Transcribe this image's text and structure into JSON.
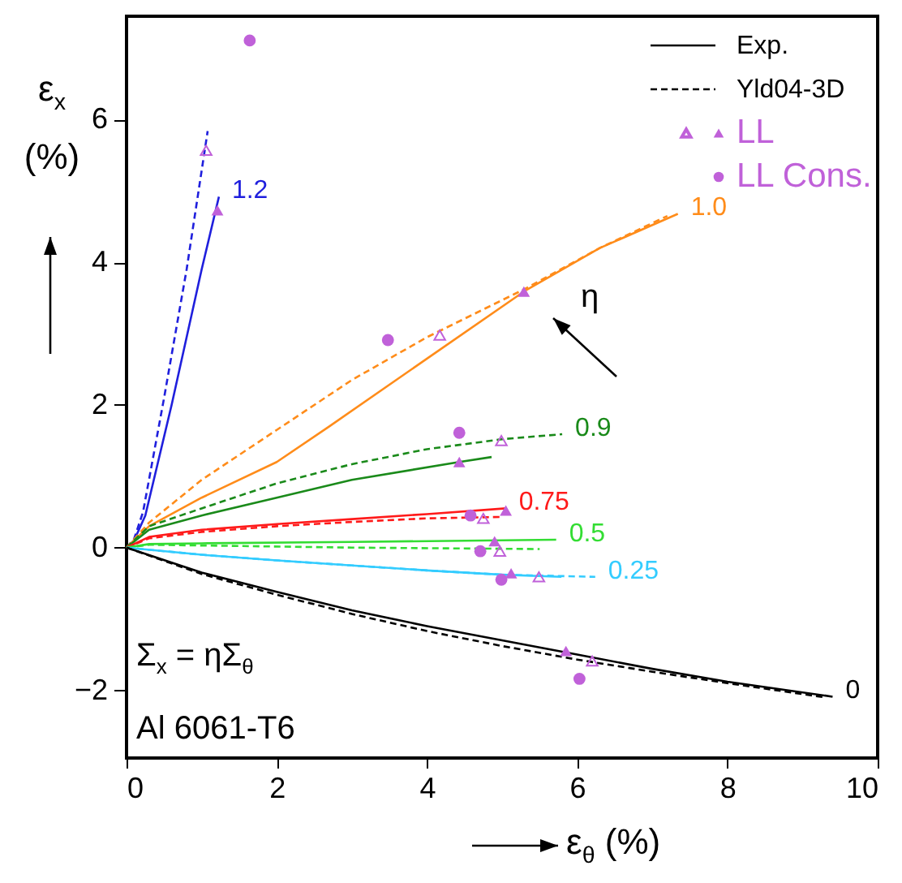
{
  "chart_data": {
    "type": "line",
    "xlabel": "ε$_{θ}$ (%)",
    "ylabel": "ε$_{x}$ (%)",
    "xlim": [
      0,
      10
    ],
    "ylim": [
      -2.95,
      7.45
    ],
    "xticks": [
      0,
      2,
      4,
      6,
      8,
      10
    ],
    "yticks": [
      -2,
      0,
      2,
      4,
      6
    ],
    "legend": "top right",
    "annotations": [
      "Σ$_{x}$ = ηΣ$_{θ}$",
      "Al 6061-T6",
      "η"
    ],
    "series": [
      {
        "name": "Exp.",
        "color": "#000000",
        "line_style": "solid"
      },
      {
        "name": "Yld04-3D",
        "color": "#000000",
        "line_style": "dashed"
      },
      {
        "name": "1.2",
        "type": "line",
        "color": "#1f1fdd",
        "line_style": "solid",
        "x": [
          0,
          0.1,
          0.25,
          0.6,
          1.0,
          1.23
        ],
        "values": [
          0,
          0.1,
          0.45,
          2.0,
          3.9,
          4.92
        ]
      },
      {
        "type": "line",
        "color": "#1f1fdd",
        "line_style": "dashed",
        "x": [
          0,
          0.1,
          0.22,
          0.5,
          0.8,
          1.08
        ],
        "values": [
          0,
          0.12,
          0.5,
          2.1,
          3.9,
          5.84
        ]
      },
      {
        "name": "1.0",
        "type": "line",
        "color": "#ff8c1a",
        "line_style": "solid",
        "x": [
          0,
          0.3,
          1,
          2,
          2.7,
          4,
          5.29,
          6.3,
          7.34
        ],
        "values": [
          0,
          0.3,
          0.7,
          1.2,
          1.7,
          2.65,
          3.59,
          4.2,
          4.68
        ]
      },
      {
        "type": "line",
        "color": "#ff8c1a",
        "line_style": "dashed",
        "x": [
          0,
          0.3,
          1,
          2,
          3,
          4,
          5.29,
          6.3,
          7.2
        ],
        "values": [
          0,
          0.35,
          0.95,
          1.65,
          2.35,
          2.95,
          3.62,
          4.2,
          4.65
        ]
      },
      {
        "name": "0.9",
        "type": "line",
        "color": "#1a8a1a",
        "line_style": "solid",
        "x": [
          0,
          0.3,
          1,
          2,
          3,
          4.43,
          4.86
        ],
        "values": [
          0,
          0.25,
          0.45,
          0.7,
          0.95,
          1.2,
          1.27
        ]
      },
      {
        "type": "line",
        "color": "#1a8a1a",
        "line_style": "dashed",
        "x": [
          0,
          0.3,
          1,
          2,
          3,
          4,
          5,
          5.8
        ],
        "values": [
          0,
          0.3,
          0.55,
          0.9,
          1.17,
          1.38,
          1.52,
          1.59
        ]
      },
      {
        "name": "0.75",
        "type": "line",
        "color": "#ff1a1a",
        "line_style": "solid",
        "x": [
          0,
          0.3,
          1,
          2,
          3,
          4,
          5.05
        ],
        "values": [
          0,
          0.15,
          0.25,
          0.33,
          0.4,
          0.47,
          0.55
        ]
      },
      {
        "type": "line",
        "color": "#ff1a1a",
        "line_style": "dashed",
        "x": [
          0,
          0.3,
          1,
          2,
          3,
          4,
          5.0
        ],
        "values": [
          0,
          0.13,
          0.22,
          0.3,
          0.36,
          0.41,
          0.43
        ]
      },
      {
        "name": "0.5",
        "type": "line",
        "color": "#33dd33",
        "line_style": "solid",
        "x": [
          0,
          0.3,
          1,
          3,
          5.72
        ],
        "values": [
          0,
          0.05,
          0.06,
          0.08,
          0.11
        ]
      },
      {
        "type": "line",
        "color": "#33dd33",
        "line_style": "dashed",
        "x": [
          0,
          0.3,
          1,
          3,
          5.5
        ],
        "values": [
          0,
          0.04,
          0.03,
          0.0,
          -0.02
        ]
      },
      {
        "name": "0.25",
        "type": "line",
        "color": "#33ccff",
        "line_style": "solid",
        "x": [
          0,
          1,
          2,
          3,
          4,
          5,
          5.79
        ],
        "values": [
          0,
          -0.1,
          -0.18,
          -0.25,
          -0.32,
          -0.38,
          -0.41
        ]
      },
      {
        "type": "line",
        "color": "#33ccff",
        "line_style": "dashed",
        "x": [
          0,
          1,
          2,
          3,
          4,
          5,
          6.24
        ],
        "values": [
          0,
          -0.1,
          -0.18,
          -0.25,
          -0.32,
          -0.38,
          -0.41
        ]
      },
      {
        "name": "0",
        "color": "#000000",
        "line_style": "solid",
        "x": [
          0,
          1,
          2,
          3,
          4,
          5,
          6,
          7,
          8,
          9.4
        ],
        "values": [
          0,
          -0.35,
          -0.62,
          -0.88,
          -1.1,
          -1.3,
          -1.5,
          -1.7,
          -1.88,
          -2.09
        ]
      },
      {
        "type": "line",
        "color": "#000000",
        "line_style": "dashed",
        "x": [
          0,
          1,
          2,
          3,
          4,
          5,
          6,
          7,
          8,
          9.3
        ],
        "values": [
          0,
          -0.37,
          -0.66,
          -0.93,
          -1.17,
          -1.38,
          -1.57,
          -1.74,
          -1.9,
          -2.1
        ]
      },
      {
        "name": "LL",
        "type": "scatter",
        "marker": "triangle",
        "color": "#c061d9",
        "x": [
          1.21,
          5.29,
          4.43,
          5.05,
          4.9,
          5.12,
          5.85
        ],
        "values": [
          4.73,
          3.59,
          1.2,
          0.52,
          0.09,
          -0.36,
          -1.45
        ]
      },
      {
        "type": "scatter",
        "marker": "triangle",
        "color": "#c061d9",
        "x": [
          1.06,
          4.17,
          4.99,
          4.75,
          4.97,
          5.49,
          6.2
        ],
        "values": [
          5.57,
          2.98,
          1.5,
          0.41,
          -0.05,
          -0.41,
          -1.59
        ]
      },
      {
        "name": "LL Cons.",
        "type": "scatter",
        "marker": "circle",
        "color": "#c061d9",
        "x": [
          1.64,
          3.48,
          4.43,
          4.58,
          4.71,
          4.99,
          6.03
        ],
        "values": [
          7.11,
          2.91,
          1.61,
          0.45,
          -0.05,
          -0.45,
          -1.84
        ]
      }
    ]
  }
}
